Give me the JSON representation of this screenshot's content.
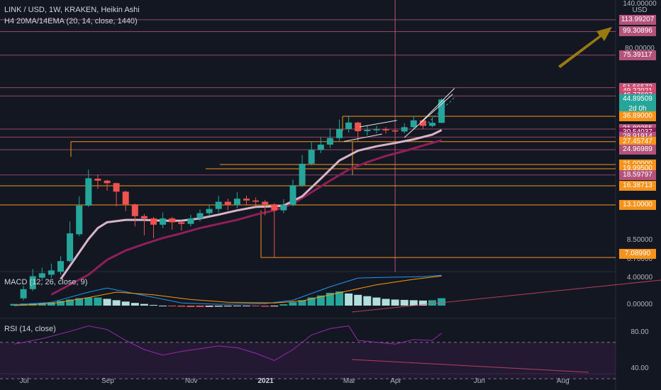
{
  "header": {
    "main_title": "LINK / USD, 1W, KRAKEN, Heikin Ashi",
    "indicator": "H4 20MA/14EMA (20, 14, close, 1440)",
    "macd_title": "MACD (12, 26, close, 9)",
    "rsi_title": "RSI (14, close)"
  },
  "colors": {
    "background": "#131722",
    "up": "#26a69a",
    "down": "#ef5350",
    "level_pink": "#b4537a",
    "level_orange": "#f7931a",
    "ma_fast": "#d7b4c8",
    "ma_slow": "#8e1f5a",
    "arrow": "#9a7a10",
    "rsi_line": "#9c27b0",
    "macd_line": "#2196f3",
    "signal_line": "#ff9800"
  },
  "price_axis": {
    "ticks": [
      {
        "label": "140.00000",
        "value": 140
      },
      {
        "label": "USD",
        "value": null
      },
      {
        "label": "80.00000",
        "value": 80
      },
      {
        "label": "8.50000",
        "value": 8.5
      },
      {
        "label": "6.70000",
        "value": 6.7
      }
    ]
  },
  "price_tags": [
    {
      "label": "113.99207",
      "value": 113.99207,
      "color": "#b4537a"
    },
    {
      "label": "99.30896",
      "value": 99.30896,
      "color": "#b4537a"
    },
    {
      "label": "75.39117",
      "value": 75.39117,
      "color": "#b4537a"
    },
    {
      "label": "51.56573",
      "value": 51.56573,
      "color": "#b4537a"
    },
    {
      "label": "49.22021",
      "value": 49.22021,
      "color": "#e0486a"
    },
    {
      "label": "46.77697",
      "value": 46.77697,
      "color": "#b4537a"
    },
    {
      "label": "44.89509",
      "value": 44.89509,
      "color": "#26a69a"
    },
    {
      "label": "2d 0h",
      "value": null,
      "color": "#26a69a"
    },
    {
      "label": "36.89000",
      "value": 36.89,
      "color": "#f7931a"
    },
    {
      "label": "31.80355",
      "value": 31.80355,
      "color": "#b4537a"
    },
    {
      "label": "30.54037",
      "value": 30.54037,
      "color": "#8e1f5a"
    },
    {
      "label": "28.91914",
      "value": 28.91914,
      "color": "#b4537a"
    },
    {
      "label": "27.45747",
      "value": 27.45747,
      "color": "#f7931a"
    },
    {
      "label": "24.96989",
      "value": 24.96989,
      "color": "#b4537a"
    },
    {
      "label": "21.00000",
      "value": 21.0,
      "color": "#f7931a"
    },
    {
      "label": "19.99500",
      "value": 19.995,
      "color": "#f7931a"
    },
    {
      "label": "18.59797",
      "value": 18.59797,
      "color": "#b4537a"
    },
    {
      "label": "16.38713",
      "value": 16.38713,
      "color": "#f7931a"
    },
    {
      "label": "13.10000",
      "value": 13.1,
      "color": "#f7931a"
    },
    {
      "label": "7.08990",
      "value": 7.0899,
      "color": "#f7931a"
    }
  ],
  "macd_axis": [
    {
      "label": "4.00000",
      "value": 4
    },
    {
      "label": "0.00000",
      "value": 0
    }
  ],
  "rsi_axis": [
    {
      "label": "80.00",
      "value": 80
    },
    {
      "label": "40.00",
      "value": 40
    }
  ],
  "time_axis": [
    {
      "label": "Jul",
      "week": 0
    },
    {
      "label": "Sep",
      "week": 9
    },
    {
      "label": "Nov",
      "week": 18
    },
    {
      "label": "2021",
      "week": 26
    },
    {
      "label": "Mar",
      "week": 35
    },
    {
      "label": "Apr",
      "week": 40
    },
    {
      "label": "Jun",
      "week": 49
    },
    {
      "label": "Aug",
      "week": 58
    }
  ],
  "chart_data": {
    "type": "candlestick",
    "scale": "log",
    "xaxis": "weekly, from 2020-06-29",
    "candles": [
      {
        "week": 1,
        "o": 4.4,
        "c": 4.9,
        "h": 5.1,
        "l": 4.3
      },
      {
        "week": 2,
        "o": 4.9,
        "c": 5.7,
        "h": 6.2,
        "l": 4.8
      },
      {
        "week": 3,
        "o": 5.6,
        "c": 5.9,
        "h": 6.3,
        "l": 5.4
      },
      {
        "week": 4,
        "o": 5.8,
        "c": 6.1,
        "h": 6.6,
        "l": 5.6
      },
      {
        "week": 5,
        "o": 6.0,
        "c": 6.8,
        "h": 7.2,
        "l": 5.8
      },
      {
        "week": 6,
        "o": 6.8,
        "c": 9.4,
        "h": 10.8,
        "l": 6.7
      },
      {
        "week": 7,
        "o": 9.3,
        "c": 13.0,
        "h": 14.5,
        "l": 9.1
      },
      {
        "week": 8,
        "o": 13.0,
        "c": 17.9,
        "h": 19.8,
        "l": 12.8
      },
      {
        "week": 9,
        "o": 17.8,
        "c": 17.4,
        "h": 18.7,
        "l": 15.8
      },
      {
        "week": 10,
        "o": 17.4,
        "c": 16.9,
        "h": 17.6,
        "l": 15.5
      },
      {
        "week": 11,
        "o": 16.9,
        "c": 15.3,
        "h": 17.0,
        "l": 12.9
      },
      {
        "week": 12,
        "o": 15.3,
        "c": 13.2,
        "h": 15.5,
        "l": 12.2
      },
      {
        "week": 13,
        "o": 13.2,
        "c": 11.5,
        "h": 13.3,
        "l": 10.2
      },
      {
        "week": 14,
        "o": 11.5,
        "c": 11.2,
        "h": 11.8,
        "l": 9.2
      },
      {
        "week": 15,
        "o": 11.2,
        "c": 10.4,
        "h": 11.4,
        "l": 8.9
      },
      {
        "week": 16,
        "o": 10.4,
        "c": 11.2,
        "h": 12.0,
        "l": 10.0
      },
      {
        "week": 17,
        "o": 11.2,
        "c": 10.7,
        "h": 11.4,
        "l": 9.8
      },
      {
        "week": 18,
        "o": 10.7,
        "c": 10.5,
        "h": 10.9,
        "l": 9.7
      },
      {
        "week": 19,
        "o": 10.5,
        "c": 11.2,
        "h": 11.7,
        "l": 10.2
      },
      {
        "week": 20,
        "o": 11.2,
        "c": 11.9,
        "h": 12.4,
        "l": 10.8
      },
      {
        "week": 21,
        "o": 11.9,
        "c": 12.5,
        "h": 13.1,
        "l": 11.5
      },
      {
        "week": 22,
        "o": 12.5,
        "c": 13.6,
        "h": 14.6,
        "l": 12.0
      },
      {
        "week": 23,
        "o": 13.6,
        "c": 13.1,
        "h": 14.1,
        "l": 12.3
      },
      {
        "week": 24,
        "o": 13.1,
        "c": 14.1,
        "h": 15.2,
        "l": 12.6
      },
      {
        "week": 25,
        "o": 14.1,
        "c": 13.8,
        "h": 14.6,
        "l": 13.0
      },
      {
        "week": 26,
        "o": 13.8,
        "c": 13.6,
        "h": 14.3,
        "l": 12.9
      },
      {
        "week": 27,
        "o": 13.6,
        "c": 13.2,
        "h": 13.9,
        "l": 11.6
      },
      {
        "week": 28,
        "o": 13.2,
        "c": 12.3,
        "h": 13.4,
        "l": 7.1
      },
      {
        "week": 29,
        "o": 12.3,
        "c": 13.1,
        "h": 14.0,
        "l": 11.9
      },
      {
        "week": 30,
        "o": 13.1,
        "c": 16.5,
        "h": 17.6,
        "l": 12.9
      },
      {
        "week": 31,
        "o": 16.5,
        "c": 21.2,
        "h": 23.5,
        "l": 16.2
      },
      {
        "week": 32,
        "o": 21.2,
        "c": 24.9,
        "h": 27.6,
        "l": 20.8
      },
      {
        "week": 33,
        "o": 24.9,
        "c": 26.5,
        "h": 29.0,
        "l": 24.0
      },
      {
        "week": 34,
        "o": 26.5,
        "c": 28.6,
        "h": 32.0,
        "l": 25.5
      },
      {
        "week": 35,
        "o": 28.6,
        "c": 31.8,
        "h": 35.5,
        "l": 27.7
      },
      {
        "week": 36,
        "o": 31.8,
        "c": 34.3,
        "h": 37.2,
        "l": 30.5
      },
      {
        "week": 37,
        "o": 34.3,
        "c": 31.0,
        "h": 34.6,
        "l": 27.4
      },
      {
        "week": 38,
        "o": 31.0,
        "c": 31.5,
        "h": 33.2,
        "l": 29.5
      },
      {
        "week": 39,
        "o": 31.5,
        "c": 31.7,
        "h": 33.0,
        "l": 30.2
      },
      {
        "week": 40,
        "o": 31.7,
        "c": 31.3,
        "h": 32.5,
        "l": 30.2
      },
      {
        "week": 41,
        "o": 31.3,
        "c": 30.9,
        "h": 31.7,
        "l": 29.8
      },
      {
        "week": 42,
        "o": 30.9,
        "c": 32.5,
        "h": 34.0,
        "l": 30.2
      },
      {
        "week": 43,
        "o": 32.5,
        "c": 35.2,
        "h": 37.0,
        "l": 32.0
      },
      {
        "week": 44,
        "o": 35.2,
        "c": 33.0,
        "h": 35.6,
        "l": 31.8
      },
      {
        "week": 45,
        "o": 33.0,
        "c": 34.2,
        "h": 36.5,
        "l": 32.5
      },
      {
        "week": 46,
        "o": 34.2,
        "c": 44.9,
        "h": 45.6,
        "l": 34.0
      }
    ],
    "ma_fast": [
      [
        5,
        5.5
      ],
      [
        8,
        8.8
      ],
      [
        9,
        10.0
      ],
      [
        10,
        10.7
      ],
      [
        12,
        11.0
      ],
      [
        14,
        11.0
      ],
      [
        16,
        10.9
      ],
      [
        18,
        10.9
      ],
      [
        20,
        11.2
      ],
      [
        22,
        11.7
      ],
      [
        24,
        12.3
      ],
      [
        26,
        12.8
      ],
      [
        28,
        12.9
      ],
      [
        29,
        13.0
      ],
      [
        31,
        14.5
      ],
      [
        33,
        17.8
      ],
      [
        35,
        22.0
      ],
      [
        37,
        24.7
      ],
      [
        39,
        26.0
      ],
      [
        41,
        27.0
      ],
      [
        43,
        28.2
      ],
      [
        45,
        29.8
      ],
      [
        46,
        31.4
      ]
    ],
    "ma_slow": [
      [
        4,
        4.6
      ],
      [
        8,
        5.8
      ],
      [
        10,
        6.9
      ],
      [
        12,
        7.7
      ],
      [
        14,
        8.3
      ],
      [
        16,
        8.9
      ],
      [
        18,
        9.4
      ],
      [
        20,
        10.0
      ],
      [
        22,
        10.5
      ],
      [
        24,
        11.0
      ],
      [
        26,
        11.7
      ],
      [
        28,
        12.3
      ],
      [
        30,
        13.3
      ],
      [
        32,
        15.2
      ],
      [
        34,
        17.4
      ],
      [
        36,
        19.8
      ],
      [
        38,
        21.6
      ],
      [
        40,
        23.2
      ],
      [
        42,
        24.6
      ],
      [
        44,
        26.2
      ],
      [
        46,
        27.9
      ]
    ],
    "macd_hist": [
      0.25,
      0.3,
      0.35,
      0.4,
      0.5,
      0.7,
      0.9,
      1.1,
      1.2,
      1.2,
      1.0,
      0.8,
      0.6,
      0.4,
      0.25,
      0.1,
      0.0,
      -0.1,
      -0.15,
      -0.2,
      -0.2,
      -0.18,
      -0.15,
      -0.12,
      -0.1,
      -0.08,
      -0.1,
      -0.15,
      -0.12,
      0.2,
      0.5,
      0.8,
      1.2,
      1.5,
      1.9,
      2.1,
      1.8,
      1.6,
      1.4,
      1.2,
      1.0,
      0.9,
      0.85,
      0.8,
      0.75,
      0.8,
      1.1
    ],
    "macd_line": [
      [
        0,
        0.1
      ],
      [
        4,
        0.5
      ],
      [
        8,
        2.0
      ],
      [
        10,
        2.6
      ],
      [
        14,
        1.5
      ],
      [
        18,
        0.4
      ],
      [
        22,
        0.2
      ],
      [
        27,
        0.3
      ],
      [
        30,
        0.8
      ],
      [
        34,
        2.8
      ],
      [
        37,
        4.1
      ],
      [
        40,
        4.2
      ],
      [
        44,
        4.3
      ],
      [
        46,
        4.5
      ]
    ],
    "signal_line": [
      [
        0,
        0.0
      ],
      [
        4,
        0.3
      ],
      [
        8,
        1.2
      ],
      [
        11,
        2.0
      ],
      [
        15,
        1.6
      ],
      [
        19,
        0.9
      ],
      [
        23,
        0.5
      ],
      [
        28,
        0.4
      ],
      [
        31,
        0.7
      ],
      [
        35,
        1.9
      ],
      [
        39,
        3.1
      ],
      [
        43,
        3.9
      ],
      [
        46,
        4.4
      ]
    ],
    "rsi": [
      [
        0,
        68
      ],
      [
        3,
        74
      ],
      [
        6,
        82
      ],
      [
        8,
        88
      ],
      [
        10,
        84
      ],
      [
        12,
        72
      ],
      [
        14,
        62
      ],
      [
        16,
        56
      ],
      [
        18,
        60
      ],
      [
        20,
        63
      ],
      [
        22,
        66
      ],
      [
        24,
        64
      ],
      [
        26,
        58
      ],
      [
        28,
        50
      ],
      [
        30,
        62
      ],
      [
        32,
        78
      ],
      [
        34,
        85
      ],
      [
        36,
        88
      ],
      [
        37,
        72
      ],
      [
        39,
        70
      ],
      [
        41,
        68
      ],
      [
        43,
        73
      ],
      [
        45,
        72
      ],
      [
        46,
        80
      ]
    ],
    "drawings": {
      "levels_pink": [
        113.99207,
        99.30896,
        75.39117,
        51.56573,
        46.77697,
        31.80355,
        28.91914,
        24.96989,
        18.59797
      ],
      "levels_orange": [
        36.89,
        27.45747,
        21.0,
        19.995,
        16.38713,
        13.1,
        7.0899
      ],
      "vertical_line_week": 41
    }
  }
}
